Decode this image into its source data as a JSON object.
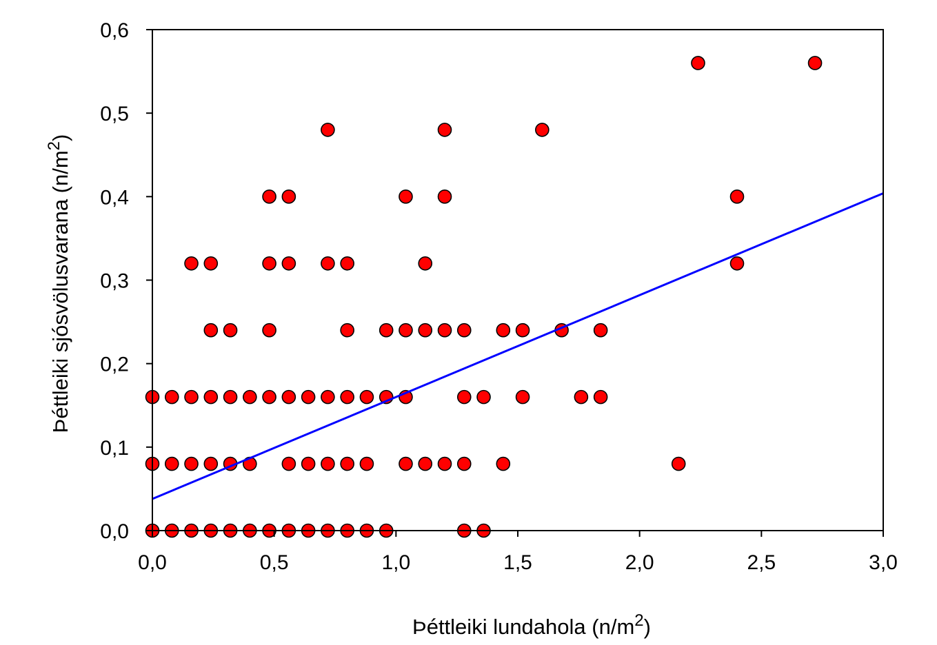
{
  "chart_data": {
    "type": "scatter",
    "title": "",
    "xlabel": {
      "main": "Þéttleiki lundahola (n/m",
      "sup": "2",
      "tail": ")"
    },
    "ylabel": {
      "main": "Þéttleiki sjósvölusvarana (n/m",
      "sup": "2",
      "tail": ")"
    },
    "xlim": [
      0,
      3.0
    ],
    "ylim": [
      0,
      0.6
    ],
    "x_ticks": [
      0,
      0.5,
      1.0,
      1.5,
      2.0,
      2.5,
      3.0
    ],
    "y_ticks": [
      0,
      0.1,
      0.2,
      0.3,
      0.4,
      0.5,
      0.6
    ],
    "x_tick_labels": [
      "0,0",
      "0,5",
      "1,0",
      "1,5",
      "2,0",
      "2,5",
      "3,0"
    ],
    "y_tick_labels": [
      "0,0",
      "0,1",
      "0,2",
      "0,3",
      "0,4",
      "0,5",
      "0,6"
    ],
    "grid": false,
    "marker_color": "#ff0000",
    "marker_edge": "#000000",
    "trend_color": "#0000ff",
    "trendline": {
      "x": [
        0,
        3.0
      ],
      "y": [
        0.038,
        0.404
      ]
    },
    "points": [
      [
        0.0,
        0.0
      ],
      [
        0.08,
        0.0
      ],
      [
        0.16,
        0.0
      ],
      [
        0.24,
        0.0
      ],
      [
        0.32,
        0.0
      ],
      [
        0.4,
        0.0
      ],
      [
        0.48,
        0.0
      ],
      [
        0.56,
        0.0
      ],
      [
        0.64,
        0.0
      ],
      [
        0.72,
        0.0
      ],
      [
        0.8,
        0.0
      ],
      [
        0.88,
        0.0
      ],
      [
        0.96,
        0.0
      ],
      [
        1.28,
        0.0
      ],
      [
        1.36,
        0.0
      ],
      [
        0.0,
        0.08
      ],
      [
        0.08,
        0.08
      ],
      [
        0.16,
        0.08
      ],
      [
        0.24,
        0.08
      ],
      [
        0.32,
        0.08
      ],
      [
        0.4,
        0.08
      ],
      [
        0.56,
        0.08
      ],
      [
        0.64,
        0.08
      ],
      [
        0.72,
        0.08
      ],
      [
        0.8,
        0.08
      ],
      [
        0.88,
        0.08
      ],
      [
        1.04,
        0.08
      ],
      [
        1.12,
        0.08
      ],
      [
        1.2,
        0.08
      ],
      [
        1.28,
        0.08
      ],
      [
        1.44,
        0.08
      ],
      [
        2.16,
        0.08
      ],
      [
        0.0,
        0.16
      ],
      [
        0.08,
        0.16
      ],
      [
        0.16,
        0.16
      ],
      [
        0.24,
        0.16
      ],
      [
        0.32,
        0.16
      ],
      [
        0.4,
        0.16
      ],
      [
        0.48,
        0.16
      ],
      [
        0.56,
        0.16
      ],
      [
        0.64,
        0.16
      ],
      [
        0.72,
        0.16
      ],
      [
        0.8,
        0.16
      ],
      [
        0.88,
        0.16
      ],
      [
        0.96,
        0.16
      ],
      [
        1.04,
        0.16
      ],
      [
        1.28,
        0.16
      ],
      [
        1.36,
        0.16
      ],
      [
        1.52,
        0.16
      ],
      [
        1.76,
        0.16
      ],
      [
        1.84,
        0.16
      ],
      [
        0.24,
        0.24
      ],
      [
        0.32,
        0.24
      ],
      [
        0.48,
        0.24
      ],
      [
        0.8,
        0.24
      ],
      [
        0.96,
        0.24
      ],
      [
        1.04,
        0.24
      ],
      [
        1.12,
        0.24
      ],
      [
        1.2,
        0.24
      ],
      [
        1.28,
        0.24
      ],
      [
        1.44,
        0.24
      ],
      [
        1.52,
        0.24
      ],
      [
        1.68,
        0.24
      ],
      [
        1.84,
        0.24
      ],
      [
        0.16,
        0.32
      ],
      [
        0.24,
        0.32
      ],
      [
        0.48,
        0.32
      ],
      [
        0.56,
        0.32
      ],
      [
        0.72,
        0.32
      ],
      [
        0.8,
        0.32
      ],
      [
        1.12,
        0.32
      ],
      [
        2.4,
        0.32
      ],
      [
        0.48,
        0.4
      ],
      [
        0.56,
        0.4
      ],
      [
        1.04,
        0.4
      ],
      [
        1.2,
        0.4
      ],
      [
        2.4,
        0.4
      ],
      [
        0.72,
        0.48
      ],
      [
        1.2,
        0.48
      ],
      [
        1.6,
        0.48
      ],
      [
        2.24,
        0.56
      ],
      [
        2.72,
        0.56
      ]
    ]
  }
}
